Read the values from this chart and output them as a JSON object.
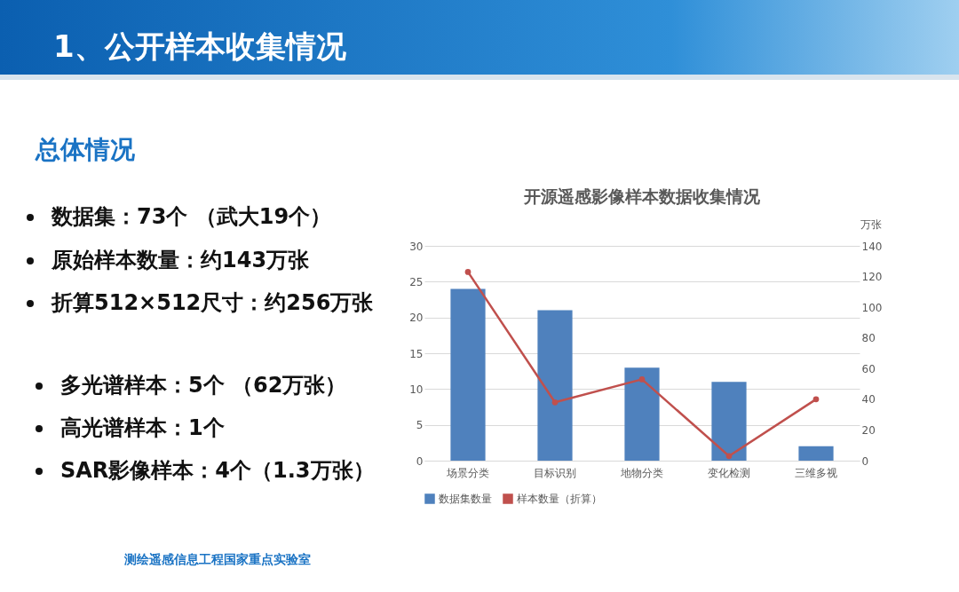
{
  "chart_data": {
    "type": "bar",
    "title": "开源遥感影像样本数据收集情况",
    "subtitle": "总体情况",
    "y2label": "万张",
    "annotations": [
      "1、公开样本收集情况",
      "数据集：73个 （武大19个）",
      "原始样本数量：约143万张",
      "折算512×512尺寸：约256万张",
      "多光谱样本：5个 （62万张）",
      "高光谱样本：1个",
      "SAR影像样本：4个（1.3万张）",
      "测绘遥感信息工程国家重点实验室"
    ],
    "categories": [
      "场景分类",
      "目标识别",
      "地物分类",
      "变化检测",
      "三维多视"
    ],
    "series": [
      {
        "name": "数据集数量",
        "color": "#4f81bd",
        "values": [
          24,
          21,
          13,
          11,
          2
        ]
      },
      {
        "name": "样本数量（折算）",
        "type": "line",
        "axis": "y2",
        "color": "#c0504d",
        "values": [
          123,
          38,
          53,
          3,
          40
        ]
      }
    ],
    "ylim": [
      0,
      30
    ],
    "yticks": [
      0,
      5,
      10,
      15,
      20,
      25,
      30
    ],
    "y2lim": [
      0,
      140
    ],
    "y2ticks": [
      0,
      20,
      40,
      60,
      80,
      100,
      120,
      140
    ],
    "grid": "y",
    "legend": "bottom",
    "marker": "circle",
    "line_style": "solid"
  }
}
